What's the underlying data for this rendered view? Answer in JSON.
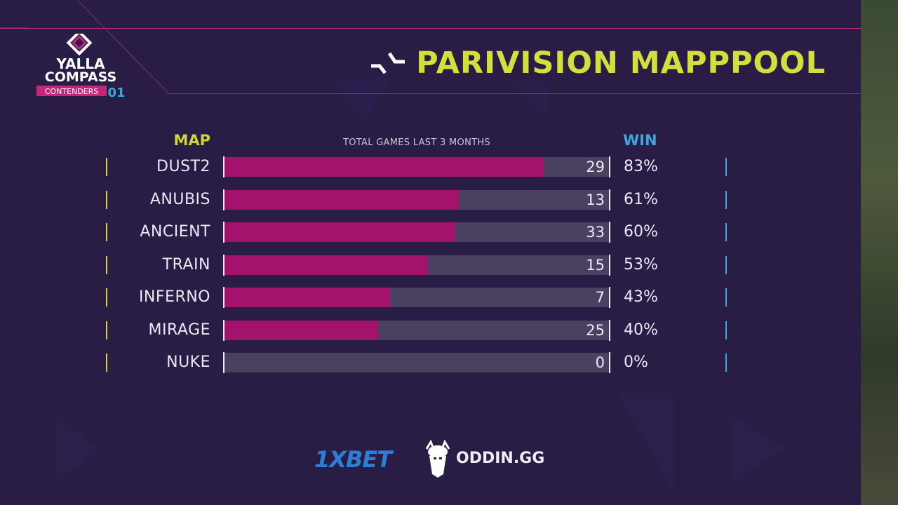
{
  "event": {
    "logo_line1": "YALLA",
    "logo_line2": "COMPASS",
    "logo_tag": "CONTENDERS",
    "logo_num": "01"
  },
  "header": {
    "title": "PARIVISION MAPPPOOL",
    "team_icon": "parivision-logo-icon"
  },
  "colors": {
    "background": "#291c45",
    "accent_yellow": "#d3e03c",
    "accent_blue": "#3ea6dc",
    "bar_fill": "#a3126d",
    "bar_track": "#4a405f"
  },
  "chart_data": {
    "type": "bar",
    "orientation": "horizontal",
    "column_labels": {
      "map": "MAP",
      "games": "TOTAL GAMES LAST 3 MONTHS",
      "win": "WIN"
    },
    "categories": [
      "DUST2",
      "ANUBIS",
      "ANCIENT",
      "TRAIN",
      "INFERNO",
      "MIRAGE",
      "NUKE"
    ],
    "win_rate": [
      83,
      61,
      60,
      53,
      43,
      40,
      0
    ],
    "win_rate_labels": [
      "83%",
      "61%",
      "60%",
      "53%",
      "43%",
      "40%",
      "0%"
    ],
    "games": [
      29,
      13,
      33,
      15,
      7,
      25,
      0
    ],
    "xlim": [
      0,
      100
    ],
    "grid": false,
    "legend": "none"
  },
  "sponsors": {
    "first": "1XBET",
    "second": "ODDIN.GG"
  }
}
